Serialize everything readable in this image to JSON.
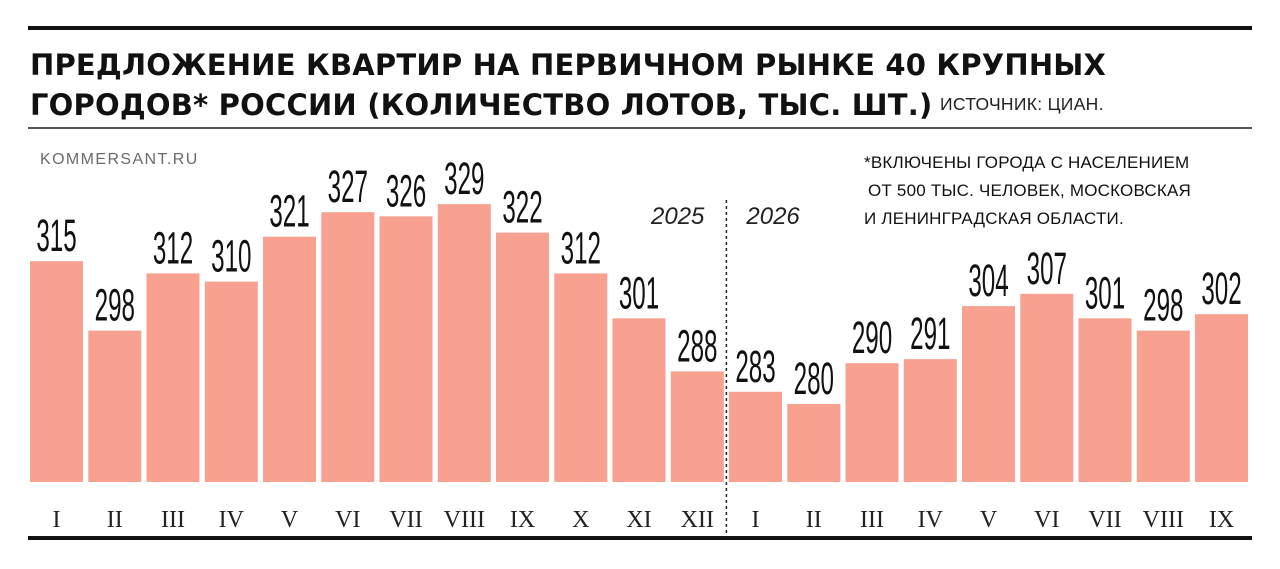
{
  "header": {
    "title_line_1": "ПРЕДЛОЖЕНИЕ КВАРТИР НА ПЕРВИЧНОМ РЫНКЕ 40 КРУПНЫХ",
    "title_line_2": "ГОРОДОВ* РОССИИ (КОЛИЧЕСТВО ЛОТОВ, ТЫС. ШТ.)",
    "source": "ИСТОЧНИК: ЦИАН."
  },
  "brand": "KOMMERSANT.RU",
  "footnote": {
    "lines": [
      "*ВКЛЮЧЕНЫ ГОРОДА С НАСЕЛЕНИЕМ",
      "ОТ 500 ТЫС. ЧЕЛОВЕК, МОСКОВСКАЯ",
      "И ЛЕНИНГРАДСКАЯ ОБЛАСТИ."
    ]
  },
  "colors": {
    "bar": "#f8a191",
    "text": "#111111",
    "divider": "#222222"
  },
  "chart_data": {
    "type": "bar",
    "title": "ПРЕДЛОЖЕНИЕ КВАРТИР НА ПЕРВИЧНОМ РЫНКЕ 40 КРУПНЫХ ГОРОДОВ* РОССИИ (КОЛИЧЕСТВО ЛОТОВ, ТЫС. ШТ.)",
    "xlabel": "",
    "ylabel": "",
    "grid": false,
    "groups": [
      {
        "year": "2025",
        "categories": [
          "I",
          "II",
          "III",
          "IV",
          "V",
          "VI",
          "VII",
          "VIII",
          "IX",
          "X",
          "XI",
          "XII"
        ],
        "values": [
          315,
          298,
          312,
          310,
          321,
          327,
          326,
          329,
          322,
          312,
          301,
          288
        ]
      },
      {
        "year": "2026",
        "categories": [
          "I",
          "II",
          "III",
          "IV",
          "V",
          "VI",
          "VII",
          "VIII",
          "IX"
        ],
        "values": [
          283,
          280,
          290,
          291,
          304,
          307,
          301,
          298,
          302
        ]
      }
    ],
    "data_labels": true
  }
}
